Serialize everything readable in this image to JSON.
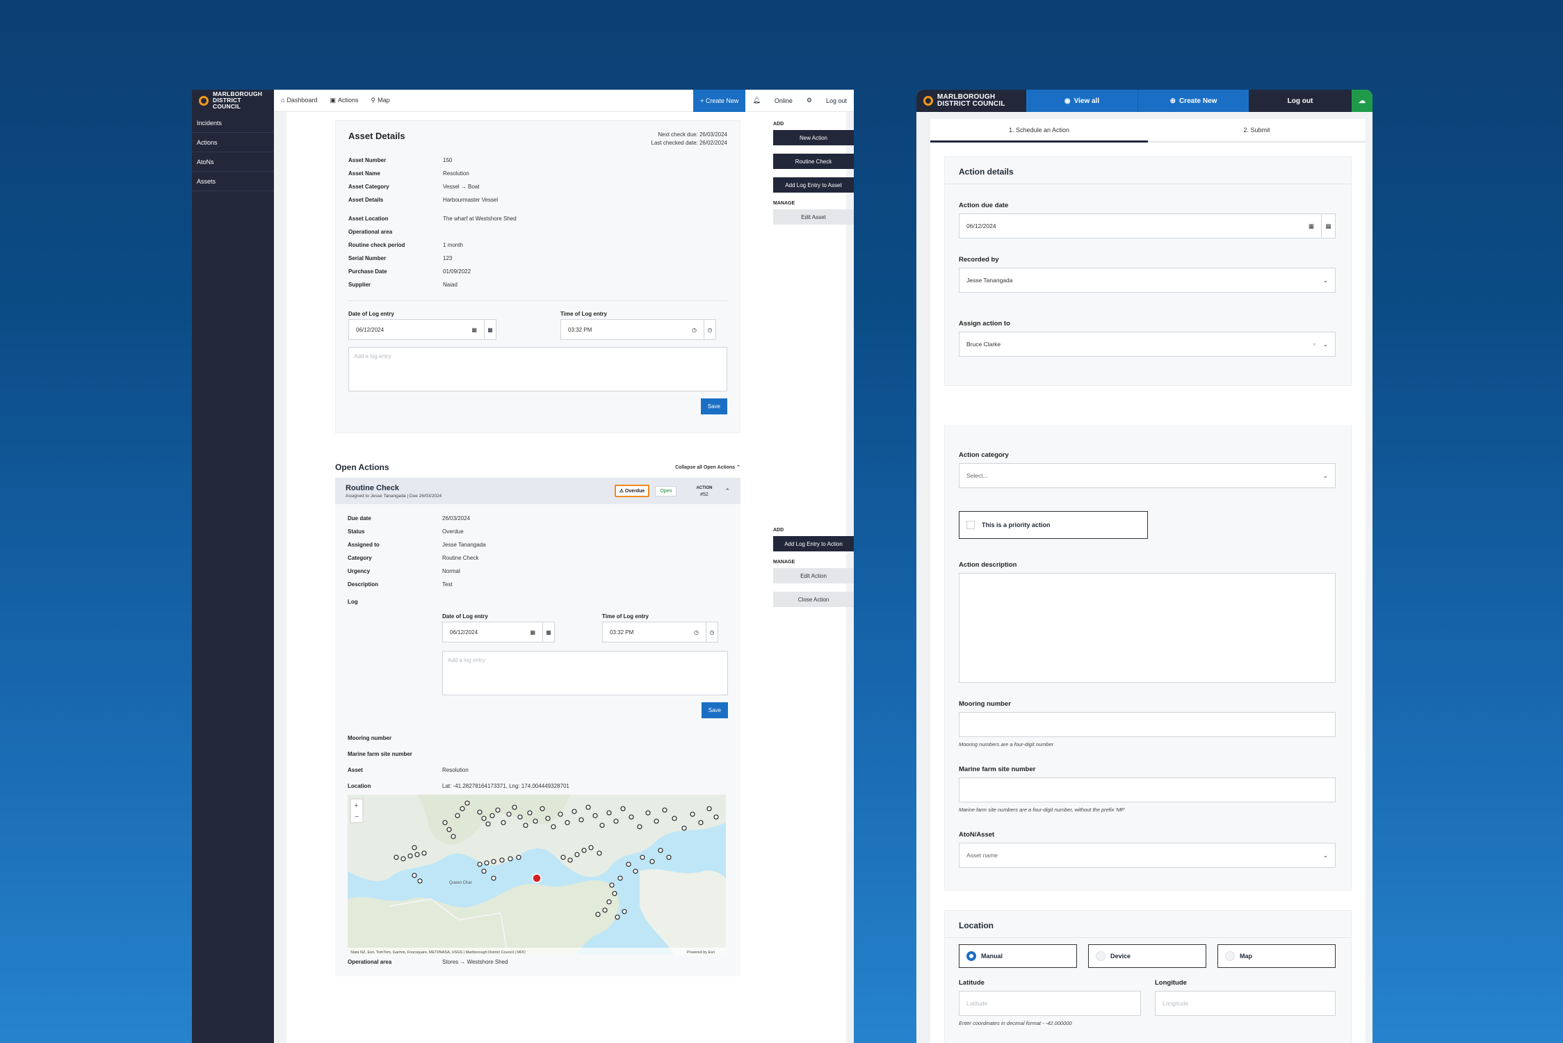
{
  "left": {
    "logo": {
      "line1": "MARLBOROUGH",
      "line2": "DISTRICT COUNCIL"
    },
    "nav": [
      {
        "icon": "home-icon",
        "label": "Dashboard"
      },
      {
        "icon": "clipboard-icon",
        "label": "Actions"
      },
      {
        "icon": "map-pin-icon",
        "label": "Map"
      }
    ],
    "topright": {
      "create": "+ Create New",
      "online": "Online",
      "logout": "Log out"
    },
    "sidebar": [
      "Incidents",
      "Actions",
      "AtoNs",
      "Assets"
    ],
    "asset": {
      "title": "Asset Details",
      "next_check": "Next check due: 26/03/2024",
      "last_checked": "Last checked date: 26/02/2024",
      "fields": [
        {
          "k": "Asset Number",
          "v": "150"
        },
        {
          "k": "Asset Name",
          "v": "Resolution"
        },
        {
          "k": "Asset Category",
          "v": "Vessel → Boat"
        },
        {
          "k": "Asset Details",
          "v": "Harbourmaster Vessel"
        },
        {
          "k": "Asset Location",
          "v": "The wharf at Westshore Shed"
        },
        {
          "k": "Operational area",
          "v": ""
        },
        {
          "k": "Routine check period",
          "v": "1 month"
        },
        {
          "k": "Serial Number",
          "v": "123"
        },
        {
          "k": "Purchase Date",
          "v": "01/09/2022"
        },
        {
          "k": "Supplier",
          "v": "Naiad"
        }
      ],
      "date_label": "Date of Log entry",
      "date_value": "06/12/2024",
      "time_label": "Time of Log entry",
      "time_value": "03:32 PM",
      "log_placeholder": "Add a log entry",
      "save": "Save"
    },
    "asset_actions": {
      "add": "ADD",
      "new_action": "New Action",
      "routine": "Routine Check",
      "add_log": "Add Log Entry to Asset",
      "manage": "MANAGE",
      "edit": "Edit Asset"
    },
    "open_actions": {
      "title": "Open Actions",
      "collapse": "Collapse all Open Actions",
      "item_title": "Routine Check",
      "item_sub": "Assigned to Jesse Tanangada  | Due 26/03/2024",
      "overdue": "Overdue",
      "open": "Open",
      "action_label": "ACTION",
      "action_num": "#52",
      "fields": [
        {
          "k": "Due date",
          "v": "26/03/2024"
        },
        {
          "k": "Status",
          "v": "Overdue"
        },
        {
          "k": "Assigned to",
          "v": "Jesse Tanangada"
        },
        {
          "k": "Category",
          "v": "Routine Check"
        },
        {
          "k": "Urgency",
          "v": "Normal"
        },
        {
          "k": "Description",
          "v": "Test"
        }
      ],
      "log_label": "Log",
      "mooring": "Mooring number",
      "marine": "Marine farm site number",
      "asset_k": "Asset",
      "asset_v": "Resolution",
      "location_k": "Location",
      "location_v": "Lat: -41.28278164173371, Lng: 174.004449328701",
      "map_credit": "Stats NZ, Esri, TomTom, Garmin, Foursquare, METI/NASA, USGS | Marlborough District Council | MOC",
      "powered": "Powered by Esri",
      "place_label": "Queen Char",
      "op_k": "Operational area",
      "op_v": "Stores → Westshore Shed"
    },
    "action_actions": {
      "add": "ADD",
      "add_log": "Add Log Entry to Action",
      "manage": "MANAGE",
      "edit": "Edit Action",
      "close": "Close Action"
    }
  },
  "right": {
    "logo": {
      "line1": "MARLBOROUGH",
      "line2": "DISTRICT COUNCIL"
    },
    "view_all": "View all",
    "create_new": "Create New",
    "logout": "Log out",
    "steps": [
      "1. Schedule an Action",
      "2. Submit"
    ],
    "details_title": "Action details",
    "due_label": "Action due date",
    "due_value": "06/12/2024",
    "recorded_label": "Recorded by",
    "recorded_value": "Jesse Tanangada",
    "assign_label": "Assign action to",
    "assign_value": "Bruce Clarke",
    "category_label": "Action category",
    "category_placeholder": "Select...",
    "priority": "This is a priority action",
    "desc_label": "Action description",
    "mooring_label": "Mooring number",
    "mooring_hint": "Mooring numbers are a four-digit number",
    "marine_label": "Marine farm site number",
    "marine_hint": "Marine farm site numbers are a four-digit number, without the prefix 'MF'",
    "aton_label": "AtoN/Asset",
    "aton_placeholder": "Asset name",
    "location_title": "Location",
    "radios": [
      "Manual",
      "Device",
      "Map"
    ],
    "lat_label": "Latitude",
    "lat_placeholder": "Latitude",
    "lng_label": "Longitude",
    "lng_placeholder": "Longitude",
    "coord_hint": "Enter coordinates in decimal format - -42.000000"
  }
}
